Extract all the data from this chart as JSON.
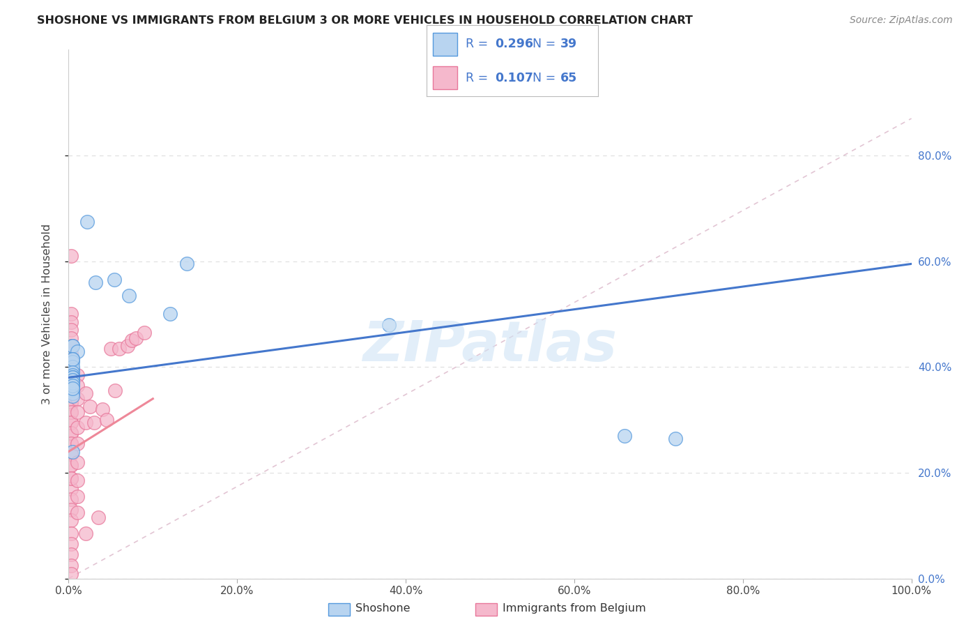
{
  "title": "SHOSHONE VS IMMIGRANTS FROM BELGIUM 3 OR MORE VEHICLES IN HOUSEHOLD CORRELATION CHART",
  "source": "Source: ZipAtlas.com",
  "ylabel": "3 or more Vehicles in Household",
  "xlim": [
    0.0,
    1.0
  ],
  "ylim": [
    0.0,
    1.0
  ],
  "legend_label1": "Shoshone",
  "legend_label2": "Immigrants from Belgium",
  "R1": "0.296",
  "N1": "39",
  "R2": "0.107",
  "N2": "65",
  "color_blue_fill": "#b8d4f0",
  "color_pink_fill": "#f5b8cc",
  "color_blue_edge": "#5599dd",
  "color_pink_edge": "#e8779a",
  "color_line_blue": "#4477cc",
  "color_line_pink": "#ee8899",
  "color_diag": "#ddbbcc",
  "color_grid": "#dddddd",
  "color_blue_text": "#4477cc",
  "color_watermark": "#d0e4f5",
  "shoshone_x": [
    0.38,
    0.022,
    0.005,
    0.032,
    0.054,
    0.072,
    0.12,
    0.14,
    0.005,
    0.01,
    0.005,
    0.005,
    0.005,
    0.005,
    0.005,
    0.005,
    0.005,
    0.005,
    0.005,
    0.005,
    0.005,
    0.005,
    0.005,
    0.005,
    0.005,
    0.005,
    0.005,
    0.005,
    0.005,
    0.005,
    0.005,
    0.005,
    0.005,
    0.005,
    0.005,
    0.005,
    0.005,
    0.66,
    0.72
  ],
  "shoshone_y": [
    0.48,
    0.675,
    0.44,
    0.56,
    0.565,
    0.535,
    0.5,
    0.595,
    0.44,
    0.43,
    0.415,
    0.41,
    0.395,
    0.4,
    0.415,
    0.38,
    0.375,
    0.37,
    0.365,
    0.36,
    0.39,
    0.38,
    0.37,
    0.385,
    0.38,
    0.37,
    0.375,
    0.36,
    0.355,
    0.35,
    0.345,
    0.38,
    0.375,
    0.37,
    0.365,
    0.36,
    0.24,
    0.27,
    0.265
  ],
  "belgium_x": [
    0.003,
    0.003,
    0.003,
    0.003,
    0.003,
    0.003,
    0.003,
    0.003,
    0.003,
    0.003,
    0.003,
    0.003,
    0.003,
    0.003,
    0.003,
    0.003,
    0.003,
    0.003,
    0.003,
    0.003,
    0.003,
    0.003,
    0.003,
    0.003,
    0.003,
    0.003,
    0.003,
    0.003,
    0.003,
    0.003,
    0.003,
    0.003,
    0.003,
    0.003,
    0.003,
    0.003,
    0.003,
    0.003,
    0.003,
    0.003,
    0.01,
    0.01,
    0.01,
    0.01,
    0.01,
    0.01,
    0.01,
    0.01,
    0.01,
    0.01,
    0.02,
    0.02,
    0.02,
    0.025,
    0.03,
    0.035,
    0.04,
    0.045,
    0.05,
    0.055,
    0.06,
    0.07,
    0.075,
    0.08,
    0.09
  ],
  "belgium_y": [
    0.61,
    0.5,
    0.485,
    0.47,
    0.455,
    0.44,
    0.425,
    0.41,
    0.395,
    0.38,
    0.365,
    0.35,
    0.33,
    0.315,
    0.295,
    0.275,
    0.255,
    0.235,
    0.215,
    0.19,
    0.17,
    0.15,
    0.13,
    0.11,
    0.085,
    0.065,
    0.045,
    0.025,
    0.008,
    0.39,
    0.375,
    0.355,
    0.335,
    0.315,
    0.295,
    0.275,
    0.255,
    0.235,
    0.215,
    0.19,
    0.385,
    0.365,
    0.34,
    0.315,
    0.285,
    0.255,
    0.22,
    0.185,
    0.155,
    0.125,
    0.35,
    0.295,
    0.085,
    0.325,
    0.295,
    0.115,
    0.32,
    0.3,
    0.435,
    0.355,
    0.435,
    0.44,
    0.45,
    0.455,
    0.465
  ],
  "blue_line_x": [
    0.0,
    1.0
  ],
  "blue_line_y": [
    0.38,
    0.595
  ],
  "pink_line_x": [
    0.0,
    0.1
  ],
  "pink_line_y": [
    0.24,
    0.34
  ],
  "diag_line_x": [
    0.0,
    1.0
  ],
  "diag_line_y": [
    0.0,
    0.87
  ]
}
